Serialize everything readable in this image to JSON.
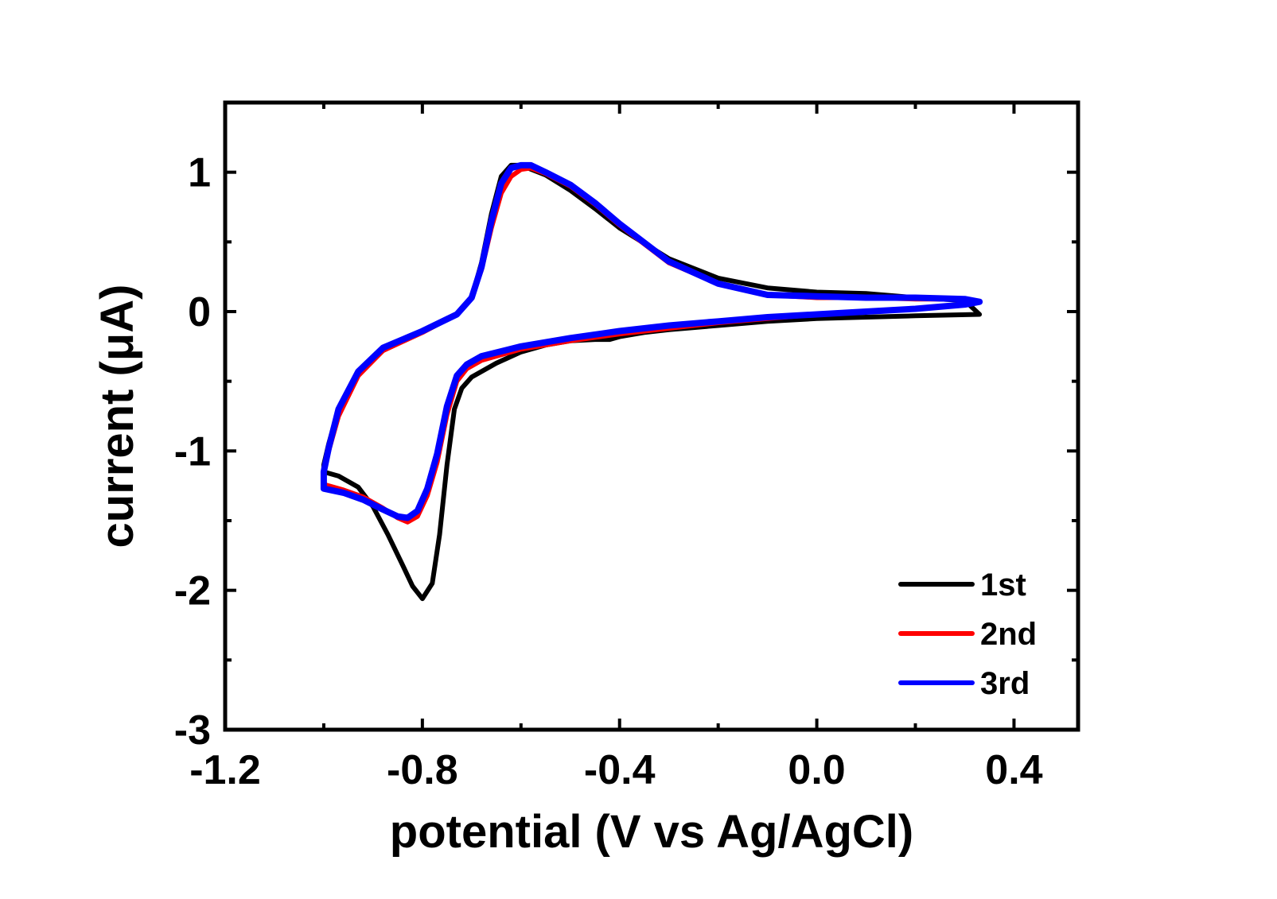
{
  "chart_data": {
    "type": "line",
    "title": "",
    "xlabel": "potential (V vs Ag/AgCl)",
    "ylabel": "current (μA)",
    "xlim": [
      -1.2,
      0.53
    ],
    "ylim": [
      -3.0,
      1.5
    ],
    "x_ticks": [
      {
        "value": -1.2,
        "label": "-1.2"
      },
      {
        "value": -0.8,
        "label": "-0.8"
      },
      {
        "value": -0.4,
        "label": "-0.4"
      },
      {
        "value": 0.0,
        "label": "0.0"
      },
      {
        "value": 0.4,
        "label": "0.4"
      }
    ],
    "x_minor_ticks": [
      -1.0,
      -0.6,
      -0.2,
      0.2
    ],
    "y_ticks": [
      {
        "value": 1,
        "label": "1"
      },
      {
        "value": 0,
        "label": "0"
      },
      {
        "value": -1,
        "label": "-1"
      },
      {
        "value": -2,
        "label": "-2"
      },
      {
        "value": -3,
        "label": "-3"
      }
    ],
    "y_minor_ticks": [
      0.5,
      -0.5,
      -1.5,
      -2.5
    ],
    "legend": {
      "position": "bottom-right"
    },
    "series": [
      {
        "name": "1st",
        "color": "#000000",
        "points": [
          [
            -1.0,
            -1.15
          ],
          [
            -0.97,
            -1.18
          ],
          [
            -0.93,
            -1.26
          ],
          [
            -0.9,
            -1.4
          ],
          [
            -0.87,
            -1.6
          ],
          [
            -0.84,
            -1.82
          ],
          [
            -0.82,
            -1.97
          ],
          [
            -0.8,
            -2.06
          ],
          [
            -0.78,
            -1.95
          ],
          [
            -0.765,
            -1.6
          ],
          [
            -0.75,
            -1.1
          ],
          [
            -0.735,
            -0.7
          ],
          [
            -0.72,
            -0.55
          ],
          [
            -0.7,
            -0.47
          ],
          [
            -0.65,
            -0.37
          ],
          [
            -0.6,
            -0.29
          ],
          [
            -0.55,
            -0.24
          ],
          [
            -0.5,
            -0.21
          ],
          [
            -0.45,
            -0.2
          ],
          [
            -0.42,
            -0.2
          ],
          [
            -0.4,
            -0.18
          ],
          [
            -0.35,
            -0.15
          ],
          [
            -0.3,
            -0.13
          ],
          [
            -0.2,
            -0.1
          ],
          [
            -0.1,
            -0.07
          ],
          [
            0.0,
            -0.05
          ],
          [
            0.1,
            -0.04
          ],
          [
            0.2,
            -0.03
          ],
          [
            0.33,
            -0.02
          ],
          [
            0.3,
            0.08
          ],
          [
            0.2,
            0.1
          ],
          [
            0.1,
            0.13
          ],
          [
            0.0,
            0.14
          ],
          [
            -0.1,
            0.17
          ],
          [
            -0.2,
            0.24
          ],
          [
            -0.3,
            0.38
          ],
          [
            -0.4,
            0.6
          ],
          [
            -0.45,
            0.74
          ],
          [
            -0.5,
            0.87
          ],
          [
            -0.55,
            0.98
          ],
          [
            -0.6,
            1.05
          ],
          [
            -0.62,
            1.05
          ],
          [
            -0.64,
            0.97
          ],
          [
            -0.66,
            0.7
          ],
          [
            -0.68,
            0.35
          ],
          [
            -0.7,
            0.1
          ],
          [
            -0.73,
            -0.02
          ],
          [
            -0.8,
            -0.14
          ],
          [
            -0.88,
            -0.28
          ],
          [
            -0.93,
            -0.45
          ],
          [
            -0.97,
            -0.7
          ],
          [
            -0.99,
            -0.95
          ],
          [
            -1.0,
            -1.1
          ],
          [
            -1.0,
            -1.2
          ]
        ]
      },
      {
        "name": "2nd",
        "color": "#ff0000",
        "points": [
          [
            -1.0,
            -1.24
          ],
          [
            -0.96,
            -1.28
          ],
          [
            -0.92,
            -1.33
          ],
          [
            -0.88,
            -1.41
          ],
          [
            -0.85,
            -1.48
          ],
          [
            -0.83,
            -1.51
          ],
          [
            -0.81,
            -1.47
          ],
          [
            -0.79,
            -1.32
          ],
          [
            -0.77,
            -1.08
          ],
          [
            -0.75,
            -0.74
          ],
          [
            -0.73,
            -0.5
          ],
          [
            -0.71,
            -0.41
          ],
          [
            -0.68,
            -0.35
          ],
          [
            -0.6,
            -0.27
          ],
          [
            -0.5,
            -0.21
          ],
          [
            -0.4,
            -0.16
          ],
          [
            -0.3,
            -0.12
          ],
          [
            -0.2,
            -0.08
          ],
          [
            -0.1,
            -0.05
          ],
          [
            0.0,
            -0.02
          ],
          [
            0.1,
            0.0
          ],
          [
            0.2,
            0.02
          ],
          [
            0.3,
            0.05
          ],
          [
            0.33,
            0.07
          ],
          [
            0.3,
            0.09
          ],
          [
            0.2,
            0.09
          ],
          [
            0.1,
            0.1
          ],
          [
            0.0,
            0.1
          ],
          [
            -0.1,
            0.12
          ],
          [
            -0.2,
            0.2
          ],
          [
            -0.3,
            0.35
          ],
          [
            -0.4,
            0.62
          ],
          [
            -0.45,
            0.77
          ],
          [
            -0.5,
            0.9
          ],
          [
            -0.55,
            0.99
          ],
          [
            -0.58,
            1.03
          ],
          [
            -0.6,
            1.02
          ],
          [
            -0.62,
            0.97
          ],
          [
            -0.64,
            0.85
          ],
          [
            -0.66,
            0.6
          ],
          [
            -0.68,
            0.3
          ],
          [
            -0.7,
            0.1
          ],
          [
            -0.73,
            -0.02
          ],
          [
            -0.8,
            -0.15
          ],
          [
            -0.88,
            -0.28
          ],
          [
            -0.93,
            -0.46
          ],
          [
            -0.97,
            -0.75
          ],
          [
            -0.99,
            -1.0
          ],
          [
            -1.0,
            -1.15
          ],
          [
            -1.0,
            -1.24
          ]
        ]
      },
      {
        "name": "3rd",
        "color": "#0000ff",
        "points": [
          [
            -1.0,
            -1.27
          ],
          [
            -0.96,
            -1.3
          ],
          [
            -0.92,
            -1.35
          ],
          [
            -0.88,
            -1.42
          ],
          [
            -0.85,
            -1.47
          ],
          [
            -0.83,
            -1.48
          ],
          [
            -0.81,
            -1.43
          ],
          [
            -0.79,
            -1.27
          ],
          [
            -0.77,
            -1.02
          ],
          [
            -0.75,
            -0.68
          ],
          [
            -0.73,
            -0.46
          ],
          [
            -0.71,
            -0.38
          ],
          [
            -0.68,
            -0.32
          ],
          [
            -0.6,
            -0.25
          ],
          [
            -0.5,
            -0.19
          ],
          [
            -0.4,
            -0.14
          ],
          [
            -0.3,
            -0.1
          ],
          [
            -0.2,
            -0.07
          ],
          [
            -0.1,
            -0.04
          ],
          [
            0.0,
            -0.02
          ],
          [
            0.1,
            0.0
          ],
          [
            0.2,
            0.02
          ],
          [
            0.3,
            0.05
          ],
          [
            0.33,
            0.07
          ],
          [
            0.3,
            0.09
          ],
          [
            0.2,
            0.1
          ],
          [
            0.1,
            0.1
          ],
          [
            0.0,
            0.11
          ],
          [
            -0.1,
            0.12
          ],
          [
            -0.2,
            0.2
          ],
          [
            -0.3,
            0.36
          ],
          [
            -0.4,
            0.63
          ],
          [
            -0.45,
            0.78
          ],
          [
            -0.5,
            0.91
          ],
          [
            -0.55,
            1.0
          ],
          [
            -0.58,
            1.05
          ],
          [
            -0.6,
            1.05
          ],
          [
            -0.62,
            1.03
          ],
          [
            -0.64,
            0.92
          ],
          [
            -0.66,
            0.65
          ],
          [
            -0.68,
            0.32
          ],
          [
            -0.7,
            0.1
          ],
          [
            -0.73,
            -0.02
          ],
          [
            -0.8,
            -0.14
          ],
          [
            -0.88,
            -0.26
          ],
          [
            -0.93,
            -0.43
          ],
          [
            -0.97,
            -0.7
          ],
          [
            -0.99,
            -0.98
          ],
          [
            -1.0,
            -1.15
          ],
          [
            -1.0,
            -1.27
          ]
        ]
      }
    ]
  }
}
